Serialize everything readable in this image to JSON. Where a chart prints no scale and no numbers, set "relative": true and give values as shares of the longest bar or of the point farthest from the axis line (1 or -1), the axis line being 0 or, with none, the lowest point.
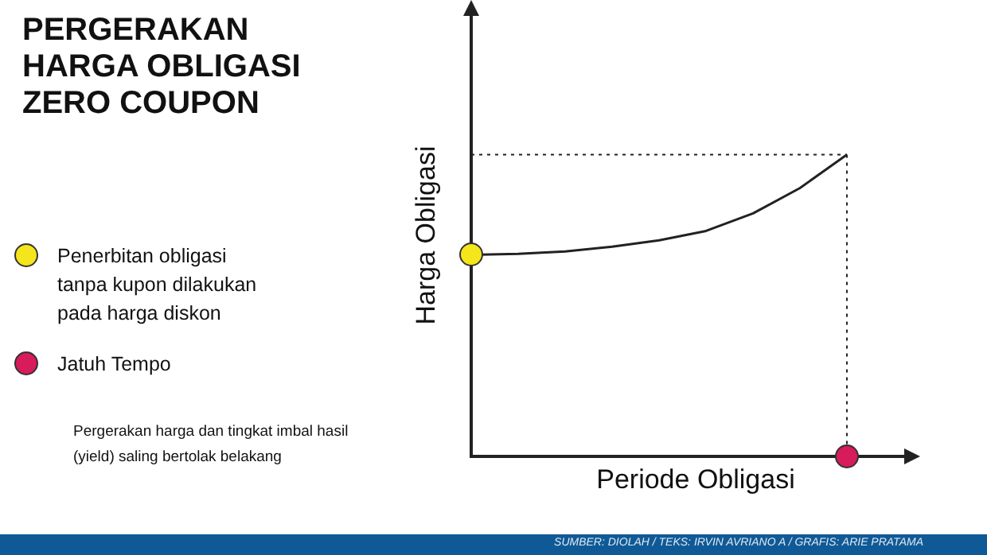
{
  "chart_data": {
    "type": "line",
    "title": "PERGERAKAN\nHARGA OBLIGASI\nZERO COUPON",
    "xlabel": "Periode Obligasi",
    "ylabel": "Harga Obligasi",
    "relative": true,
    "categories": [
      null,
      null,
      null,
      null,
      null,
      null,
      null,
      null,
      null
    ],
    "series": [
      {
        "color": "#222222",
        "values": [
          0.668,
          0.671,
          0.679,
          0.695,
          0.716,
          0.747,
          0.805,
          0.889,
          1
        ]
      }
    ],
    "annotations": [
      "Penerbitan obligasi\ntanpa kupon dilakukan\npada harga diskon",
      "Jatuh Tempo",
      "Pergerakan harga dan tingkat imbal hasil\n(yield) saling bertolak belakang",
      "SUMBER: DIOLAH / TEKS: IRVIN AVRIANO A / GRAFIS: ARIE PRATAMA"
    ]
  }
}
